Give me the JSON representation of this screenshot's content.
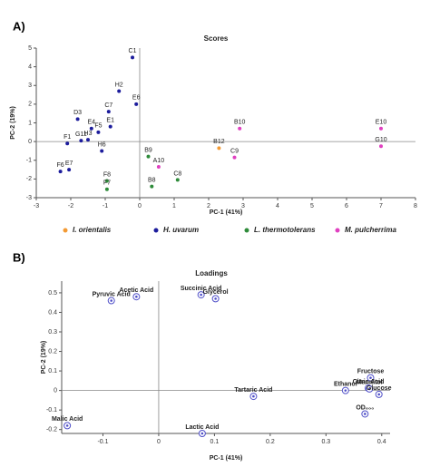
{
  "chart_data": [
    {
      "type": "scatter",
      "panel": "A)",
      "title": "Scores",
      "x_label": "PC-1 (41%)",
      "y_label": "PC-2 (19%)",
      "xlim": [
        -3,
        8
      ],
      "ylim": [
        -3,
        5
      ],
      "xticks": [
        -3,
        -2,
        -1,
        0,
        1,
        2,
        3,
        4,
        5,
        6,
        7,
        8
      ],
      "yticks": [
        -3,
        -2,
        -1,
        0,
        1,
        2,
        3,
        4,
        5
      ],
      "legend": "bottom",
      "series": [
        {
          "name": "I. orientalis",
          "color": "#f39a34",
          "x": [
            2.3
          ],
          "values": [
            -0.35
          ],
          "labels": [
            "B12"
          ]
        },
        {
          "name": "H. uvarum",
          "color": "#1c1c9c",
          "x": [
            -0.21,
            -0.6,
            -0.9,
            -0.1,
            -1.8,
            -0.85,
            -1.4,
            -1.2,
            -2.1,
            -1.7,
            -1.5,
            -1.1,
            -2.3,
            -2.05
          ],
          "values": [
            4.5,
            2.7,
            1.6,
            2.0,
            1.2,
            0.8,
            0.7,
            0.5,
            -0.1,
            0.05,
            0.1,
            -0.5,
            -1.6,
            -1.5
          ],
          "labels": [
            "C1",
            "H2",
            "C7",
            "E6",
            "D3",
            "E1",
            "E4",
            "F5",
            "F1",
            "G11",
            "H3",
            "H6",
            "F6",
            "E7"
          ]
        },
        {
          "name": "L. thermotolerans",
          "color": "#2e8b3a",
          "x": [
            0.25,
            -0.95,
            -0.95,
            0.35,
            1.1
          ],
          "values": [
            -0.8,
            -2.1,
            -2.55,
            -2.4,
            -2.05
          ],
          "labels": [
            "B9",
            "F8",
            "F7",
            "B8",
            "C8"
          ]
        },
        {
          "name": "M. pulcherrima",
          "color": "#e040c0",
          "x": [
            2.9,
            7.0,
            7.0,
            2.75,
            0.55
          ],
          "values": [
            0.7,
            0.7,
            -0.25,
            -0.85,
            -1.35
          ],
          "labels": [
            "B10",
            "E10",
            "G10",
            "C9",
            "A10"
          ]
        }
      ]
    },
    {
      "type": "scatter",
      "panel": "B)",
      "title": "Loadings",
      "x_label": "PC-1 (41%)",
      "y_label": "PC-2 (19%)",
      "xlim": [
        -0.174,
        0.415
      ],
      "ylim": [
        -0.22,
        0.56
      ],
      "xticks": [
        -0.1,
        0,
        0.1,
        0.2,
        0.3,
        0.4
      ],
      "yticks": [
        -0.2,
        -0.1,
        0,
        0.1,
        0.2,
        0.3,
        0.4,
        0.5
      ],
      "color": "#5050c8",
      "series": [
        {
          "x": [
            -0.085,
            -0.04,
            0.076,
            0.102,
            0.17,
            0.335,
            0.38,
            0.376,
            0.378,
            0.395,
            0.37,
            0.078,
            -0.164
          ],
          "values": [
            0.46,
            0.48,
            0.49,
            0.47,
            -0.03,
            0.0,
            0.065,
            0.012,
            0.008,
            -0.02,
            -0.12,
            -0.22,
            -0.18
          ],
          "labels": [
            "Pyruvic Acid",
            "Acetic Acid",
            "Succinic Acid",
            "Glycerol",
            "Tartaric Acid",
            "Ethanol",
            "Fructose",
            "Citric Acid",
            "Mannitol",
            "Glucose",
            "OD₆₀₀",
            "Lactic Acid",
            "Malic Acid"
          ]
        }
      ]
    }
  ]
}
